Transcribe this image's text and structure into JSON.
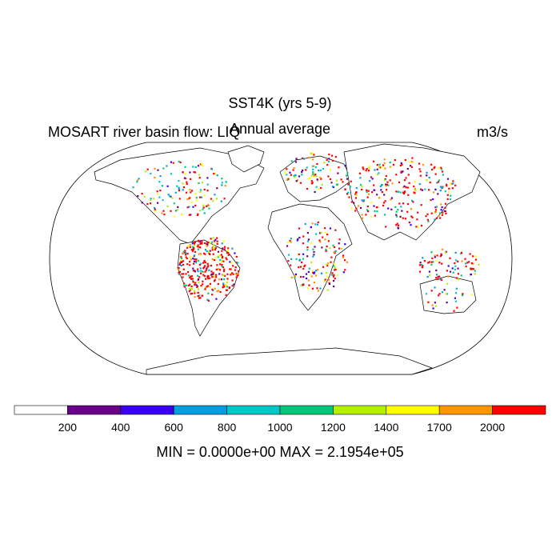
{
  "title": "SST4K (yrs 5-9)",
  "subtitle": "Annual average",
  "left_label": "MOSART river basin flow: LIQ",
  "right_label": "m3/s",
  "stats": "MIN = 0.0000e+00 MAX = 2.1954e+05",
  "colorbar": {
    "colors": [
      "#ffffff",
      "#6a008a",
      "#3a00f0",
      "#00a0e0",
      "#00c8c8",
      "#00c878",
      "#b4f000",
      "#ffff00",
      "#ff9600",
      "#ff0000"
    ],
    "tick_labels": [
      "200",
      "400",
      "600",
      "800",
      "1000",
      "1200",
      "1400",
      "1700",
      "2000"
    ]
  },
  "map": {
    "projection": "Robinson",
    "land_color": "#ffffff",
    "outline_color": "#000000"
  }
}
